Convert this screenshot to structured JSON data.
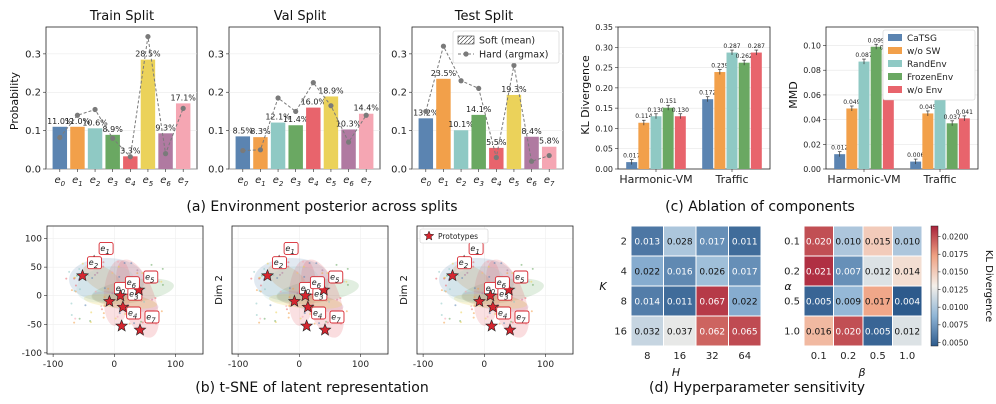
{
  "captions": {
    "a": "(a) Environment posterior across splits",
    "b": "(b) t-SNE of latent representation",
    "c": "(c) Ablation of components",
    "d": "(d) Hyperparameter sensitivity"
  },
  "colors": {
    "env": [
      "#5b84b1",
      "#f2a04a",
      "#8fc9c4",
      "#6aa862",
      "#e8646c",
      "#ebd25a",
      "#b07aa1",
      "#f5a6b3"
    ],
    "ablation": [
      "#5b84b1",
      "#f2a04a",
      "#8fc9c4",
      "#6aa862",
      "#e8646c"
    ],
    "hard_marker": "#7a7a7a"
  },
  "chart_data": [
    {
      "id": "train",
      "type": "bar",
      "title": "Train Split",
      "ylabel": "Probability",
      "ylim": [
        0,
        0.37
      ],
      "yticks": [
        0.0,
        0.1,
        0.2,
        0.3
      ],
      "ytick_labels": [
        "0.0",
        "0.1",
        "0.2",
        "0.3"
      ],
      "categories": [
        "e0",
        "e1",
        "e2",
        "e3",
        "e4",
        "e5",
        "e6",
        "e7"
      ],
      "category_labels": [
        [
          "e",
          "0"
        ],
        [
          "e",
          "1"
        ],
        [
          "e",
          "2"
        ],
        [
          "e",
          "3"
        ],
        [
          "e",
          "4"
        ],
        [
          "e",
          "5"
        ],
        [
          "e",
          "6"
        ],
        [
          "e",
          "7"
        ]
      ],
      "values": [
        0.11,
        0.11,
        0.106,
        0.089,
        0.033,
        0.285,
        0.093,
        0.171
      ],
      "labels": [
        "11.0%",
        "11.0%",
        "10.6%",
        "8.9%",
        "3.3%",
        "28.5%",
        "9.3%",
        "17.1%"
      ],
      "hard": [
        0.082,
        0.14,
        0.155,
        0.08,
        0.032,
        0.345,
        0.04,
        0.158
      ]
    },
    {
      "id": "val",
      "type": "bar",
      "title": "Val Split",
      "ylim": [
        0,
        0.37
      ],
      "yticks": [
        0.0,
        0.1,
        0.2,
        0.3
      ],
      "ytick_labels": [
        "0.0",
        "0.1",
        "0.2",
        "0.3"
      ],
      "categories": [
        "e0",
        "e1",
        "e2",
        "e3",
        "e4",
        "e5",
        "e6",
        "e7"
      ],
      "category_labels": [
        [
          "e",
          "0"
        ],
        [
          "e",
          "1"
        ],
        [
          "e",
          "2"
        ],
        [
          "e",
          "3"
        ],
        [
          "e",
          "4"
        ],
        [
          "e",
          "5"
        ],
        [
          "e",
          "6"
        ],
        [
          "e",
          "7"
        ]
      ],
      "values": [
        0.085,
        0.083,
        0.121,
        0.114,
        0.16,
        0.189,
        0.103,
        0.144
      ],
      "labels": [
        "8.5%",
        "8.3%",
        "12.1%",
        "11.4%",
        "16.0%",
        "18.9%",
        "10.3%",
        "14.4%"
      ],
      "hard": [
        0.048,
        0.05,
        0.185,
        0.15,
        0.225,
        0.165,
        0.07,
        0.14
      ]
    },
    {
      "id": "test",
      "type": "bar",
      "title": "Test Split",
      "ylim": [
        0,
        0.37
      ],
      "yticks": [
        0.0,
        0.1,
        0.2,
        0.3
      ],
      "ytick_labels": [
        "0.0",
        "0.1",
        "0.2",
        "0.3"
      ],
      "categories": [
        "e0",
        "e1",
        "e2",
        "e3",
        "e4",
        "e5",
        "e6",
        "e7"
      ],
      "category_labels": [
        [
          "e",
          "0"
        ],
        [
          "e",
          "1"
        ],
        [
          "e",
          "2"
        ],
        [
          "e",
          "3"
        ],
        [
          "e",
          "4"
        ],
        [
          "e",
          "5"
        ],
        [
          "e",
          "6"
        ],
        [
          "e",
          "7"
        ]
      ],
      "values": [
        0.132,
        0.235,
        0.101,
        0.141,
        0.055,
        0.193,
        0.084,
        0.058
      ],
      "labels": [
        "13.2%",
        "23.5%",
        "10.1%",
        "14.1%",
        "5.5%",
        "19.3%",
        "8.4%",
        "5.8%"
      ],
      "hard": [
        0.15,
        0.32,
        0.23,
        0.21,
        0.03,
        0.27,
        0.02,
        0.035
      ],
      "legend": [
        "Soft (mean)",
        "Hard (argmax)"
      ],
      "legend_position": "top-right"
    },
    {
      "id": "kl",
      "type": "bar",
      "ylabel": "KL Divergence",
      "ylim": [
        0,
        0.35
      ],
      "yticks": [
        0.0,
        0.05,
        0.1,
        0.15,
        0.2,
        0.25,
        0.3,
        0.35
      ],
      "ytick_labels": [
        "0.00",
        "0.05",
        "0.10",
        "0.15",
        "0.20",
        "0.25",
        "0.30",
        "0.35"
      ],
      "categories": [
        "Harmonic-VM",
        "Traffic"
      ],
      "series": [
        {
          "name": "CaTSG",
          "values": [
            0.017,
            0.172
          ],
          "labels": [
            "0.017",
            "0.172"
          ]
        },
        {
          "name": "w/o SW",
          "values": [
            0.114,
            0.239
          ],
          "labels": [
            "0.114",
            "0.239"
          ]
        },
        {
          "name": "RandEnv",
          "values": [
            0.13,
            0.287
          ],
          "labels": [
            "0.130",
            "0.287"
          ]
        },
        {
          "name": "FrozenEnv",
          "values": [
            0.151,
            0.262
          ],
          "labels": [
            "0.151",
            "0.262"
          ]
        },
        {
          "name": "w/o Env",
          "values": [
            0.13,
            0.287
          ],
          "labels": [
            "0.130",
            "0.287"
          ]
        }
      ]
    },
    {
      "id": "mmd",
      "type": "bar",
      "ylabel": "MMD",
      "ylim": [
        0,
        0.115
      ],
      "yticks": [
        0.0,
        0.02,
        0.04,
        0.06,
        0.08,
        0.1
      ],
      "ytick_labels": [
        "0.00",
        "0.02",
        "0.04",
        "0.06",
        "0.08",
        "0.10"
      ],
      "categories": [
        "Harmonic-VM",
        "Traffic"
      ],
      "series": [
        {
          "name": "CaTSG",
          "values": [
            0.012,
            0.006
          ],
          "labels": [
            "0.012",
            "0.006"
          ]
        },
        {
          "name": "w/o SW",
          "values": [
            0.049,
            0.045
          ],
          "labels": [
            "0.049",
            "0.045"
          ]
        },
        {
          "name": "RandEnv",
          "values": [
            0.087,
            0.062
          ],
          "labels": [
            "0.087",
            "0.062"
          ]
        },
        {
          "name": "FrozenEnv",
          "values": [
            0.099,
            0.037
          ],
          "labels": [
            "0.099",
            "0.037"
          ]
        },
        {
          "name": "w/o Env",
          "values": [
            0.093,
            0.041
          ],
          "labels": [
            "0.093",
            "0.041"
          ]
        }
      ],
      "legend_position": "top-right"
    },
    {
      "id": "heat-kh",
      "type": "heatmap",
      "xlabel": "H",
      "ylabel": "K",
      "x": [
        "8",
        "16",
        "32",
        "64"
      ],
      "y": [
        "2",
        "4",
        "8",
        "16"
      ],
      "values": [
        [
          0.013,
          0.028,
          0.017,
          0.011
        ],
        [
          0.022,
          0.016,
          0.026,
          0.017
        ],
        [
          0.014,
          0.011,
          0.067,
          0.022
        ],
        [
          0.032,
          0.037,
          0.062,
          0.065
        ]
      ],
      "labels": [
        [
          "0.013",
          "0.028",
          "0.017",
          "0.011"
        ],
        [
          "0.022",
          "0.016",
          "0.026",
          "0.017"
        ],
        [
          "0.014",
          "0.011",
          "0.067",
          "0.022"
        ],
        [
          "0.032",
          "0.037",
          "0.062",
          "0.065"
        ]
      ]
    },
    {
      "id": "heat-ab",
      "type": "heatmap",
      "xlabel": "β",
      "ylabel": "α",
      "x": [
        "0.1",
        "0.2",
        "0.5",
        "1.0"
      ],
      "y": [
        "0.1",
        "0.2",
        "0.5",
        "1.0"
      ],
      "values": [
        [
          0.02,
          0.01,
          0.015,
          0.01
        ],
        [
          0.021,
          0.007,
          0.012,
          0.014
        ],
        [
          0.005,
          0.009,
          0.017,
          0.004
        ],
        [
          0.016,
          0.02,
          0.005,
          0.012
        ]
      ],
      "labels": [
        [
          "0.020",
          "0.010",
          "0.015",
          "0.010"
        ],
        [
          "0.021",
          "0.007",
          "0.012",
          "0.014"
        ],
        [
          "0.005",
          "0.009",
          "0.017",
          "0.004"
        ],
        [
          "0.016",
          "0.020",
          "0.005",
          "0.012"
        ]
      ],
      "colorbar_label": "KL Divergence",
      "colorbar_range": [
        0.0045,
        0.0215
      ],
      "colorbar_ticks": [
        0.005,
        0.0075,
        0.01,
        0.0125,
        0.015,
        0.0175,
        0.02
      ],
      "colorbar_tick_labels": [
        "0.0050",
        "0.0075",
        "0.0100",
        "0.0125",
        "0.0150",
        "0.0175",
        "0.0200"
      ]
    },
    {
      "id": "tsne",
      "type": "scatter",
      "panels": [
        {
          "ylabel": ""
        },
        {
          "ylabel": "Dim 2"
        },
        {
          "ylabel": "Dim 2"
        }
      ],
      "xlim": [
        -110,
        145
      ],
      "ylim": [
        -102,
        122
      ],
      "xticks": [
        -100,
        0,
        100
      ],
      "xtick_labels": [
        "-100",
        "0",
        "100"
      ],
      "yticks": [
        -100,
        -50,
        0,
        50,
        100
      ],
      "ytick_labels": [
        "-100",
        "-50",
        "0",
        "50",
        "100"
      ],
      "legend": [
        "Prototypes"
      ],
      "prototypes": [
        {
          "label": [
            "e",
            "0"
          ],
          "x": -8,
          "y": -10
        },
        {
          "label": [
            "e",
            "1"
          ],
          "x": -33,
          "y": 60
        },
        {
          "label": [
            "e",
            "2"
          ],
          "x": -52,
          "y": 35
        },
        {
          "label": [
            "e",
            "3"
          ],
          "x": 14,
          "y": -20
        },
        {
          "label": [
            "e",
            "4"
          ],
          "x": 12,
          "y": -53
        },
        {
          "label": [
            "e",
            "5"
          ],
          "x": 40,
          "y": 10
        },
        {
          "label": [
            "e",
            "6"
          ],
          "x": 10,
          "y": 0
        },
        {
          "label": [
            "e",
            "7"
          ],
          "x": 42,
          "y": -60
        }
      ]
    }
  ]
}
